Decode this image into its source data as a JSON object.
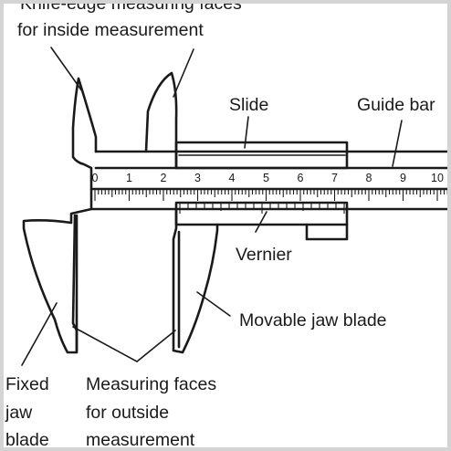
{
  "labels": {
    "knife_edge_line1": "Knife-edge measuring faces",
    "knife_edge_line2": "for inside measurement",
    "slide": "Slide",
    "guide_bar": "Guide bar",
    "vernier": "Vernier",
    "movable_jaw_blade": "Movable jaw blade",
    "fixed_line1": "Fixed",
    "fixed_line2": "jaw",
    "fixed_line3": "blade",
    "measuring_line1": "Measuring faces",
    "measuring_line2": "for outside",
    "measuring_line3": "measurement"
  },
  "scale_numbers": [
    "0",
    "1",
    "2",
    "3",
    "4",
    "5",
    "6",
    "7",
    "8",
    "9",
    "10"
  ],
  "colors": {
    "ink": "#1a1a1a",
    "background": "#ffffff",
    "border": "#d4d4d4"
  }
}
